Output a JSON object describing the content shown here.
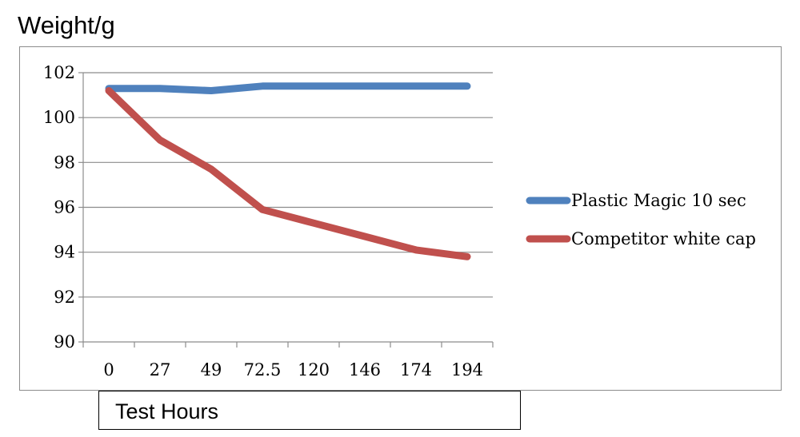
{
  "chart_data": {
    "type": "line",
    "ylabel": "Weight/g",
    "xlabel": "Test Hours",
    "categories": [
      "0",
      "27",
      "49",
      "72.5",
      "120",
      "146",
      "174",
      "194"
    ],
    "ylim": [
      90,
      102
    ],
    "yticks": [
      "90",
      "92",
      "94",
      "96",
      "98",
      "100",
      "102"
    ],
    "grid": true,
    "legend_position": "right",
    "series": [
      {
        "name": "Plastic Magic 10 sec",
        "color": "#4f81bd",
        "values": [
          101.3,
          101.3,
          101.2,
          101.4,
          101.4,
          101.4,
          101.4,
          101.4
        ]
      },
      {
        "name": "Competitor white cap",
        "color": "#c0504d",
        "values": [
          101.2,
          99.0,
          97.7,
          95.9,
          95.3,
          94.7,
          94.1,
          93.8
        ]
      }
    ]
  }
}
